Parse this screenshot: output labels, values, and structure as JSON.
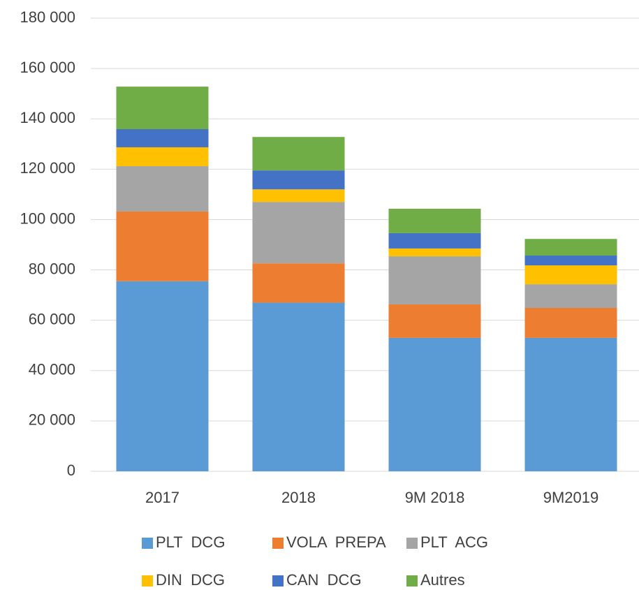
{
  "chart_data": {
    "type": "bar",
    "stacked": true,
    "categories": [
      "2017",
      "2018",
      "9M 2018",
      "9M2019"
    ],
    "series": [
      {
        "name": "PLT  DCG",
        "color": "#5b9bd5",
        "values": [
          75500,
          67000,
          53000,
          53000
        ]
      },
      {
        "name": "VOLA  PREPA",
        "color": "#ed7d31",
        "values": [
          27700,
          15600,
          13300,
          11900
        ]
      },
      {
        "name": "PLT  ACG",
        "color": "#a5a5a5",
        "values": [
          18000,
          24400,
          19100,
          9400
        ]
      },
      {
        "name": "DIN  DCG",
        "color": "#ffc000",
        "values": [
          7500,
          5000,
          3100,
          7500
        ]
      },
      {
        "name": "CAN  DCG",
        "color": "#4472c4",
        "values": [
          7200,
          7500,
          6100,
          3900
        ]
      },
      {
        "name": "Autres",
        "color": "#70ad47",
        "values": [
          16900,
          13300,
          9700,
          6600
        ]
      }
    ],
    "ylim": [
      0,
      180000
    ],
    "yticks": [
      0,
      {
        "value": 20000,
        "label": "20 000"
      },
      {
        "value": 40000,
        "label": "40 000"
      },
      {
        "value": 60000,
        "label": "60 000"
      },
      {
        "value": 80000,
        "label": "80 000"
      },
      {
        "value": 100000,
        "label": "100 000"
      },
      {
        "value": 120000,
        "label": "120 000"
      },
      {
        "value": 140000,
        "label": "140 000"
      },
      {
        "value": 160000,
        "label": "160 000"
      },
      {
        "value": 180000,
        "label": "180 000"
      }
    ],
    "grid": true,
    "legend": "bottom"
  }
}
